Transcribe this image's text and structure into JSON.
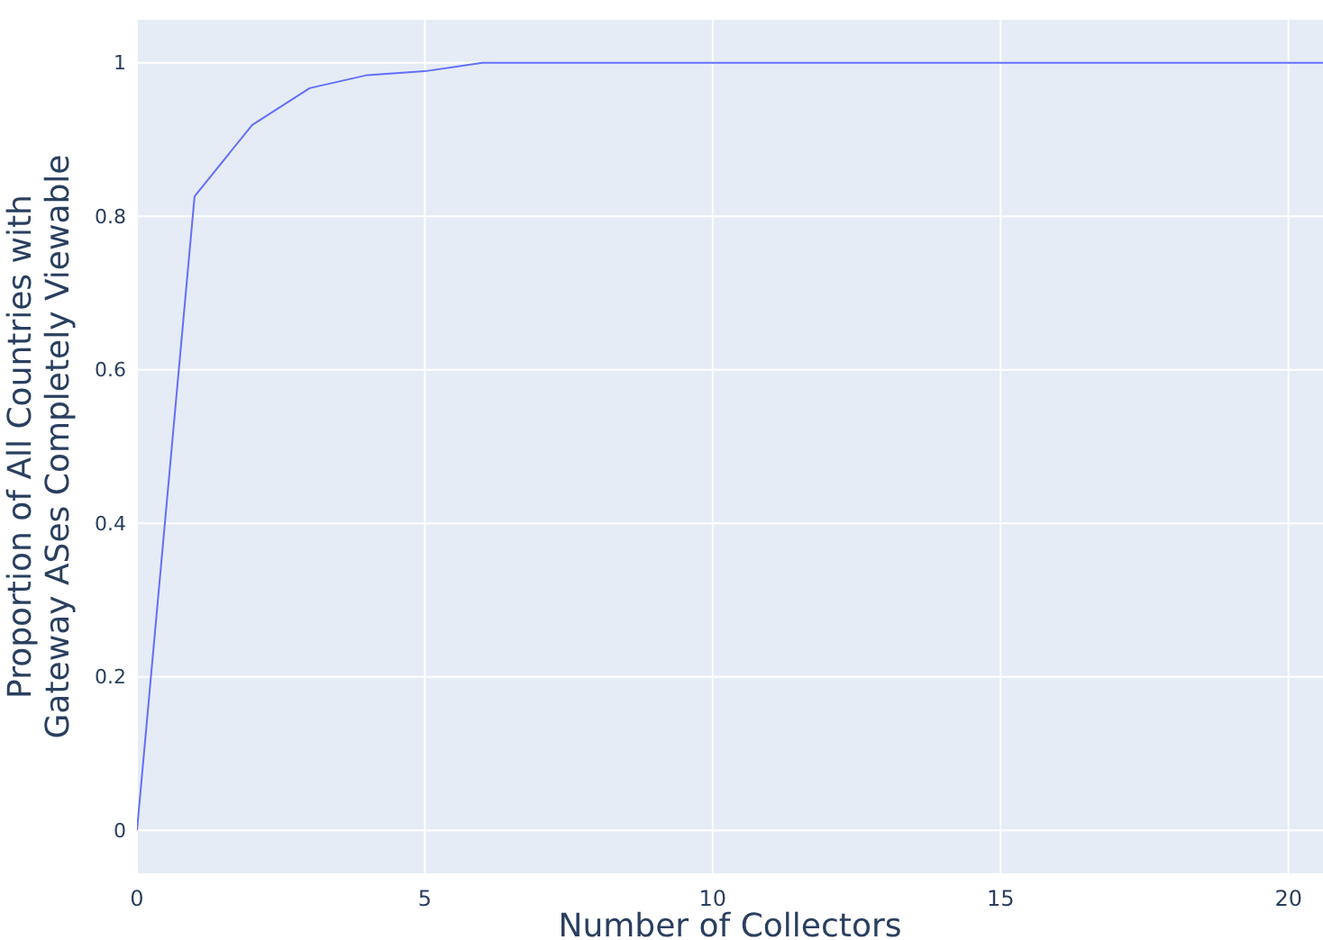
{
  "chart_data": {
    "type": "line",
    "xlabel": "Number of Collectors",
    "ylabel": "Proportion of All Countries with\nGateway ASes Completely Viewable",
    "x": [
      0,
      1,
      2,
      3,
      4,
      5,
      6,
      7,
      8,
      9,
      10,
      11,
      12,
      13,
      14,
      15,
      16,
      17,
      18,
      19,
      20,
      20.6
    ],
    "series": [
      {
        "color": "#636efa",
        "values": [
          0,
          0.826,
          0.919,
          0.967,
          0.984,
          0.989,
          1,
          1,
          1,
          1,
          1,
          1,
          1,
          1,
          1,
          1,
          1,
          1,
          1,
          1,
          1,
          1
        ]
      }
    ],
    "xlim": [
      0,
      20.6
    ],
    "ylim": [
      -0.056,
      1.056
    ],
    "xticks": [
      0,
      5,
      10,
      15,
      20
    ],
    "yticks": [
      0,
      0.2,
      0.4,
      0.6,
      0.8,
      1
    ],
    "grid": true,
    "line_style": "solid",
    "marker": "none"
  }
}
